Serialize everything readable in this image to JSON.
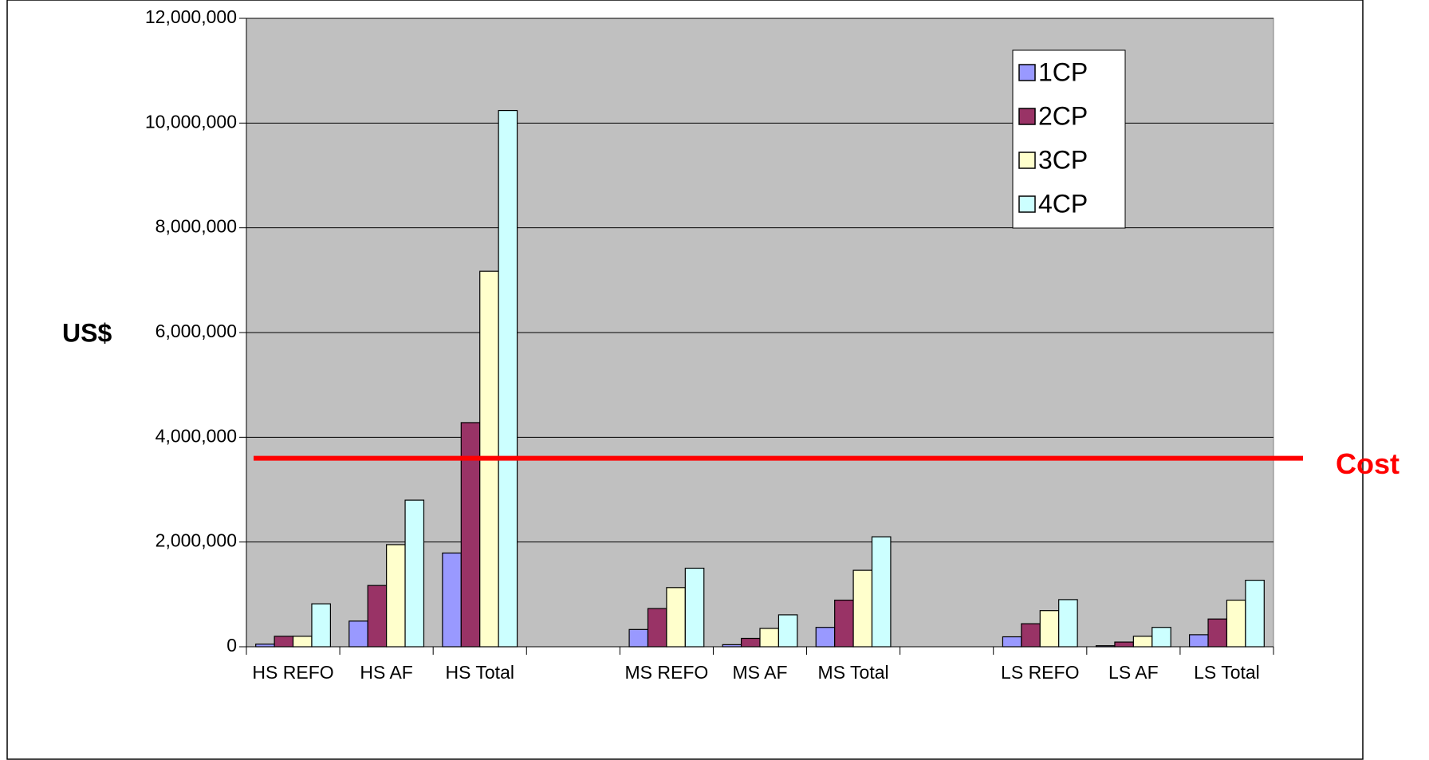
{
  "chart_data": {
    "type": "bar",
    "y_label": "US$",
    "categories": [
      "HS REFO",
      "HS AF",
      "HS Total",
      null,
      "MS REFO",
      "MS AF",
      "MS Total",
      null,
      "LS REFO",
      "LS AF",
      "LS Total"
    ],
    "series": [
      {
        "name": "1CP",
        "color": "#9999ff",
        "values": [
          50000,
          490000,
          1790000,
          null,
          330000,
          40000,
          370000,
          null,
          190000,
          20000,
          230000
        ]
      },
      {
        "name": "2CP",
        "color": "#993366",
        "values": [
          200000,
          1170000,
          4280000,
          null,
          730000,
          160000,
          890000,
          null,
          440000,
          90000,
          530000
        ]
      },
      {
        "name": "3CP",
        "color": "#ffffcc",
        "values": [
          200000,
          1950000,
          7170000,
          null,
          1130000,
          350000,
          1460000,
          null,
          690000,
          200000,
          890000
        ]
      },
      {
        "name": "4CP",
        "color": "#ccffff",
        "values": [
          820000,
          2800000,
          10240000,
          null,
          1500000,
          610000,
          2100000,
          null,
          900000,
          370000,
          1270000
        ]
      }
    ],
    "ylim": [
      0,
      12000000
    ],
    "yticks": [
      0,
      {
        "value": 2000000,
        "label": "2,000,000"
      },
      {
        "value": 4000000,
        "label": "4,000,000"
      },
      {
        "value": 6000000,
        "label": "6,000,000"
      },
      {
        "value": 8000000,
        "label": "8,000,000"
      },
      {
        "value": 10000000,
        "label": "10,000,000"
      },
      {
        "value": 12000000,
        "label": "12,000,000"
      }
    ],
    "grid": true,
    "legend": "upper right",
    "annotation": {
      "label": "Cost",
      "value": 3600000,
      "color": "#ff0000"
    }
  }
}
